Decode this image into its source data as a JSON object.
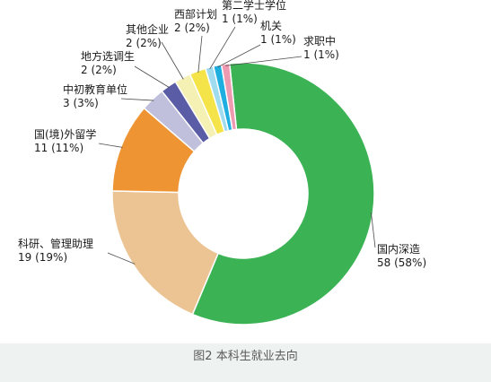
{
  "caption": "图2  本科生就业去向",
  "chart_data": {
    "type": "pie",
    "style": "donut",
    "slices": [
      {
        "label": "国内深造",
        "value": 58,
        "display": "58 (58%)",
        "color": "#3bb354"
      },
      {
        "label": "科研、管理助理",
        "value": 19,
        "display": "19 (19%)",
        "color": "#ecc493"
      },
      {
        "label": "国(境)外留学",
        "value": 11,
        "display": "11 (11%)",
        "color": "#ee9433"
      },
      {
        "label": "中初教育单位",
        "value": 3,
        "display": "3 (3%)",
        "color": "#c0c0dd"
      },
      {
        "label": "地方选调生",
        "value": 2,
        "display": "2 (2%)",
        "color": "#5a5ca6"
      },
      {
        "label": "其他企业",
        "value": 2,
        "display": "2 (2%)",
        "color": "#f5f0b3"
      },
      {
        "label": "西部计划",
        "value": 2,
        "display": "2 (2%)",
        "color": "#f5e34a"
      },
      {
        "label": "第二学士学位",
        "value": 1,
        "display": "1 (1%)",
        "color": "#9fdcef"
      },
      {
        "label": "机关",
        "value": 1,
        "display": "1 (1%)",
        "color": "#1faee0"
      },
      {
        "label": "求职中",
        "value": 1,
        "display": "1 (1%)",
        "color": "#ee9ab0"
      }
    ]
  }
}
